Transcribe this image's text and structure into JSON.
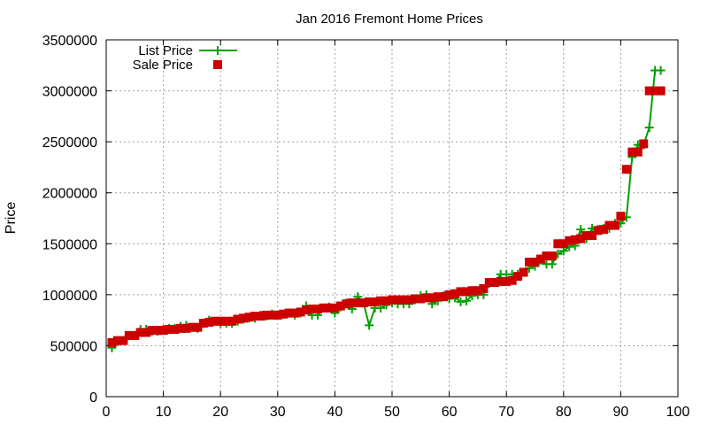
{
  "chart_data": {
    "type": "line",
    "title": "Jan 2016 Fremont Home Prices",
    "xlabel": "",
    "ylabel": "Price",
    "xlim": [
      0,
      100
    ],
    "ylim": [
      0,
      3500000
    ],
    "x_ticks": [
      "0",
      "10",
      "20",
      "30",
      "40",
      "50",
      "60",
      "70",
      "80",
      "90",
      "100"
    ],
    "y_ticks": [
      "0",
      "500000",
      "1000000",
      "1500000",
      "2000000",
      "2500000",
      "3000000",
      "3500000"
    ],
    "grid": true,
    "legend_position": "top-left",
    "series": [
      {
        "name": "List Price",
        "color": "#00a000",
        "marker": "plus",
        "style": "line",
        "x": [
          1,
          2,
          3,
          4,
          5,
          6,
          7,
          8,
          9,
          10,
          11,
          12,
          13,
          14,
          15,
          16,
          17,
          18,
          19,
          20,
          21,
          22,
          23,
          24,
          25,
          26,
          27,
          28,
          29,
          30,
          31,
          32,
          33,
          34,
          35,
          36,
          37,
          38,
          39,
          40,
          41,
          42,
          43,
          44,
          45,
          46,
          47,
          48,
          49,
          50,
          51,
          52,
          53,
          54,
          55,
          56,
          57,
          58,
          59,
          60,
          61,
          62,
          63,
          64,
          65,
          66,
          67,
          68,
          69,
          70,
          71,
          72,
          73,
          74,
          75,
          76,
          77,
          78,
          79,
          80,
          81,
          82,
          83,
          84,
          85,
          86,
          87,
          88,
          89,
          90,
          91,
          92,
          93,
          94,
          95,
          96,
          97
        ],
        "values": [
          480000,
          540000,
          550000,
          600000,
          600000,
          660000,
          660000,
          640000,
          640000,
          660000,
          670000,
          670000,
          690000,
          700000,
          680000,
          670000,
          720000,
          750000,
          740000,
          720000,
          720000,
          720000,
          740000,
          760000,
          770000,
          770000,
          800000,
          790000,
          810000,
          800000,
          810000,
          820000,
          800000,
          820000,
          890000,
          800000,
          800000,
          870000,
          880000,
          820000,
          880000,
          920000,
          860000,
          980000,
          920000,
          700000,
          870000,
          870000,
          900000,
          920000,
          910000,
          910000,
          910000,
          950000,
          990000,
          1000000,
          910000,
          940000,
          990000,
          960000,
          970000,
          930000,
          940000,
          990000,
          1000000,
          1000000,
          1110000,
          1120000,
          1200000,
          1200000,
          1200000,
          1200000,
          1220000,
          1260000,
          1280000,
          1340000,
          1300000,
          1300000,
          1400000,
          1430000,
          1470000,
          1480000,
          1640000,
          1550000,
          1650000,
          1640000,
          1650000,
          1650000,
          1700000,
          1700000,
          1760000,
          2350000,
          2470000,
          2470000,
          2640000,
          3200000,
          3200000
        ]
      },
      {
        "name": "Sale Price",
        "color": "#cc0000",
        "marker": "square",
        "style": "points",
        "x": [
          1,
          2,
          3,
          4,
          5,
          6,
          7,
          8,
          9,
          10,
          11,
          12,
          13,
          14,
          15,
          16,
          17,
          18,
          19,
          20,
          21,
          22,
          23,
          24,
          25,
          26,
          27,
          28,
          29,
          30,
          31,
          32,
          33,
          34,
          35,
          36,
          37,
          38,
          39,
          40,
          41,
          42,
          43,
          44,
          45,
          46,
          47,
          48,
          49,
          50,
          51,
          52,
          53,
          54,
          55,
          56,
          57,
          58,
          59,
          60,
          61,
          62,
          63,
          64,
          65,
          66,
          67,
          68,
          69,
          70,
          71,
          72,
          73,
          74,
          75,
          76,
          77,
          78,
          79,
          80,
          81,
          82,
          83,
          84,
          85,
          86,
          87,
          88,
          89,
          90,
          91,
          92,
          93,
          94,
          95,
          96,
          97
        ],
        "values": [
          530000,
          550000,
          550000,
          600000,
          600000,
          630000,
          630000,
          650000,
          650000,
          650000,
          660000,
          660000,
          670000,
          670000,
          680000,
          680000,
          720000,
          730000,
          740000,
          740000,
          740000,
          740000,
          760000,
          770000,
          780000,
          790000,
          790000,
          800000,
          800000,
          800000,
          810000,
          820000,
          820000,
          830000,
          850000,
          860000,
          860000,
          870000,
          870000,
          870000,
          890000,
          910000,
          920000,
          920000,
          920000,
          930000,
          930000,
          940000,
          940000,
          950000,
          950000,
          950000,
          950000,
          960000,
          960000,
          970000,
          970000,
          980000,
          980000,
          1000000,
          1010000,
          1030000,
          1030000,
          1040000,
          1040000,
          1060000,
          1120000,
          1120000,
          1130000,
          1130000,
          1140000,
          1180000,
          1220000,
          1320000,
          1320000,
          1350000,
          1380000,
          1380000,
          1500000,
          1500000,
          1530000,
          1540000,
          1550000,
          1580000,
          1580000,
          1630000,
          1640000,
          1680000,
          1680000,
          1770000,
          2230000,
          2400000,
          2400000,
          2480000,
          3000000,
          3000000,
          3000000
        ]
      }
    ]
  }
}
